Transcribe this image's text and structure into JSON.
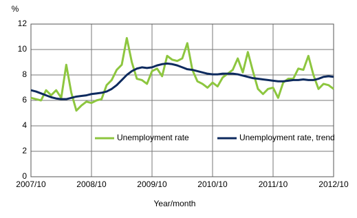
{
  "chart_data": {
    "type": "line",
    "y_unit": "%",
    "x_label": "Year/month",
    "categories": [
      "2007/10",
      null,
      null,
      null,
      null,
      null,
      null,
      null,
      null,
      null,
      null,
      null,
      "2008/10",
      null,
      null,
      null,
      null,
      null,
      null,
      null,
      null,
      null,
      null,
      null,
      "2009/10",
      null,
      null,
      null,
      null,
      null,
      null,
      null,
      null,
      null,
      null,
      null,
      "2010/10",
      null,
      null,
      null,
      null,
      null,
      null,
      null,
      null,
      null,
      null,
      null,
      "2011/10",
      null,
      null,
      null,
      null,
      null,
      null,
      null,
      null,
      null,
      null,
      null,
      "2012/10"
    ],
    "series": [
      {
        "name": "Unemployment rate",
        "color": "#8dc63f",
        "values": [
          6.2,
          6.1,
          6.0,
          6.8,
          6.4,
          6.8,
          6.2,
          8.8,
          6.6,
          5.2,
          5.6,
          5.9,
          5.8,
          6.0,
          6.1,
          7.2,
          7.6,
          8.4,
          8.8,
          10.9,
          9.0,
          7.7,
          7.6,
          7.3,
          8.3,
          8.5,
          7.9,
          9.5,
          9.2,
          9.1,
          9.3,
          10.5,
          8.4,
          7.5,
          7.3,
          7.0,
          7.4,
          7.1,
          7.8,
          8.1,
          8.4,
          9.3,
          8.2,
          9.8,
          8.3,
          6.9,
          6.5,
          6.9,
          7.0,
          6.2,
          7.4,
          7.7,
          7.7,
          8.5,
          8.4,
          9.5,
          8.0,
          6.9,
          7.3,
          7.2,
          6.9
        ]
      },
      {
        "name": "Unemployment rate, trend",
        "color": "#0d2a5e",
        "values": [
          6.8,
          6.7,
          6.55,
          6.4,
          6.25,
          6.15,
          6.1,
          6.1,
          6.2,
          6.3,
          6.35,
          6.4,
          6.5,
          6.55,
          6.6,
          6.7,
          6.9,
          7.2,
          7.6,
          8.0,
          8.3,
          8.5,
          8.6,
          8.55,
          8.6,
          8.75,
          8.85,
          8.9,
          8.85,
          8.75,
          8.6,
          8.45,
          8.4,
          8.3,
          8.2,
          8.1,
          8.05,
          8.05,
          8.1,
          8.1,
          8.1,
          8.05,
          7.95,
          7.85,
          7.75,
          7.7,
          7.65,
          7.6,
          7.55,
          7.5,
          7.5,
          7.55,
          7.6,
          7.6,
          7.65,
          7.6,
          7.6,
          7.7,
          7.85,
          7.9,
          7.85
        ]
      }
    ],
    "ylim": [
      0,
      12
    ],
    "yticks": [
      0,
      2,
      4,
      6,
      8,
      10,
      12
    ],
    "grid": true
  }
}
